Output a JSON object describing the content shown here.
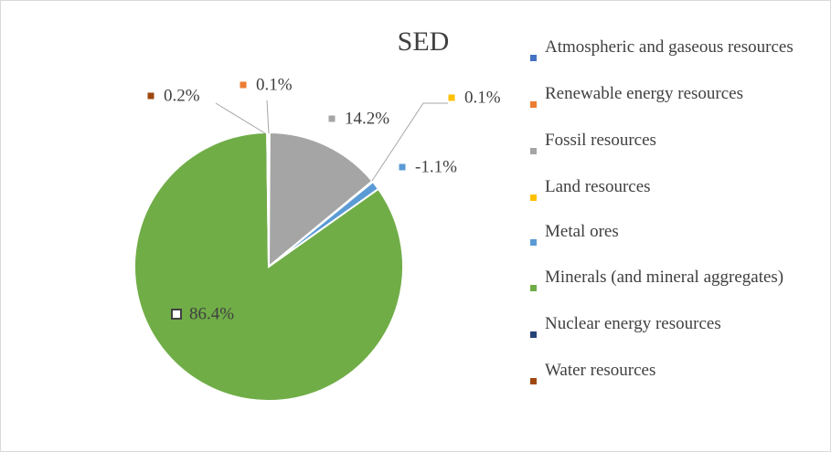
{
  "chart_data": {
    "type": "pie",
    "title": "SED",
    "categories": [
      "Atmospheric and gaseous resources",
      "Renewable energy resources",
      "Fossil resources",
      "Land resources",
      "Metal ores",
      "Minerals (and mineral aggregates)",
      "Nuclear energy resources",
      "Water resources"
    ],
    "values": [
      0,
      0.1,
      14.2,
      0.1,
      -1.1,
      86.4,
      0,
      0.2
    ],
    "value_labels": [
      null,
      "0.1%",
      "14.2%",
      "0.1%",
      "-1.1%",
      "86.4%",
      null,
      "0.2%"
    ],
    "colors": [
      "#4472c4",
      "#ed7d31",
      "#a5a5a5",
      "#ffc000",
      "#5b9bd5",
      "#70ad47",
      "#264478",
      "#9e480e"
    ],
    "legend": "right"
  }
}
